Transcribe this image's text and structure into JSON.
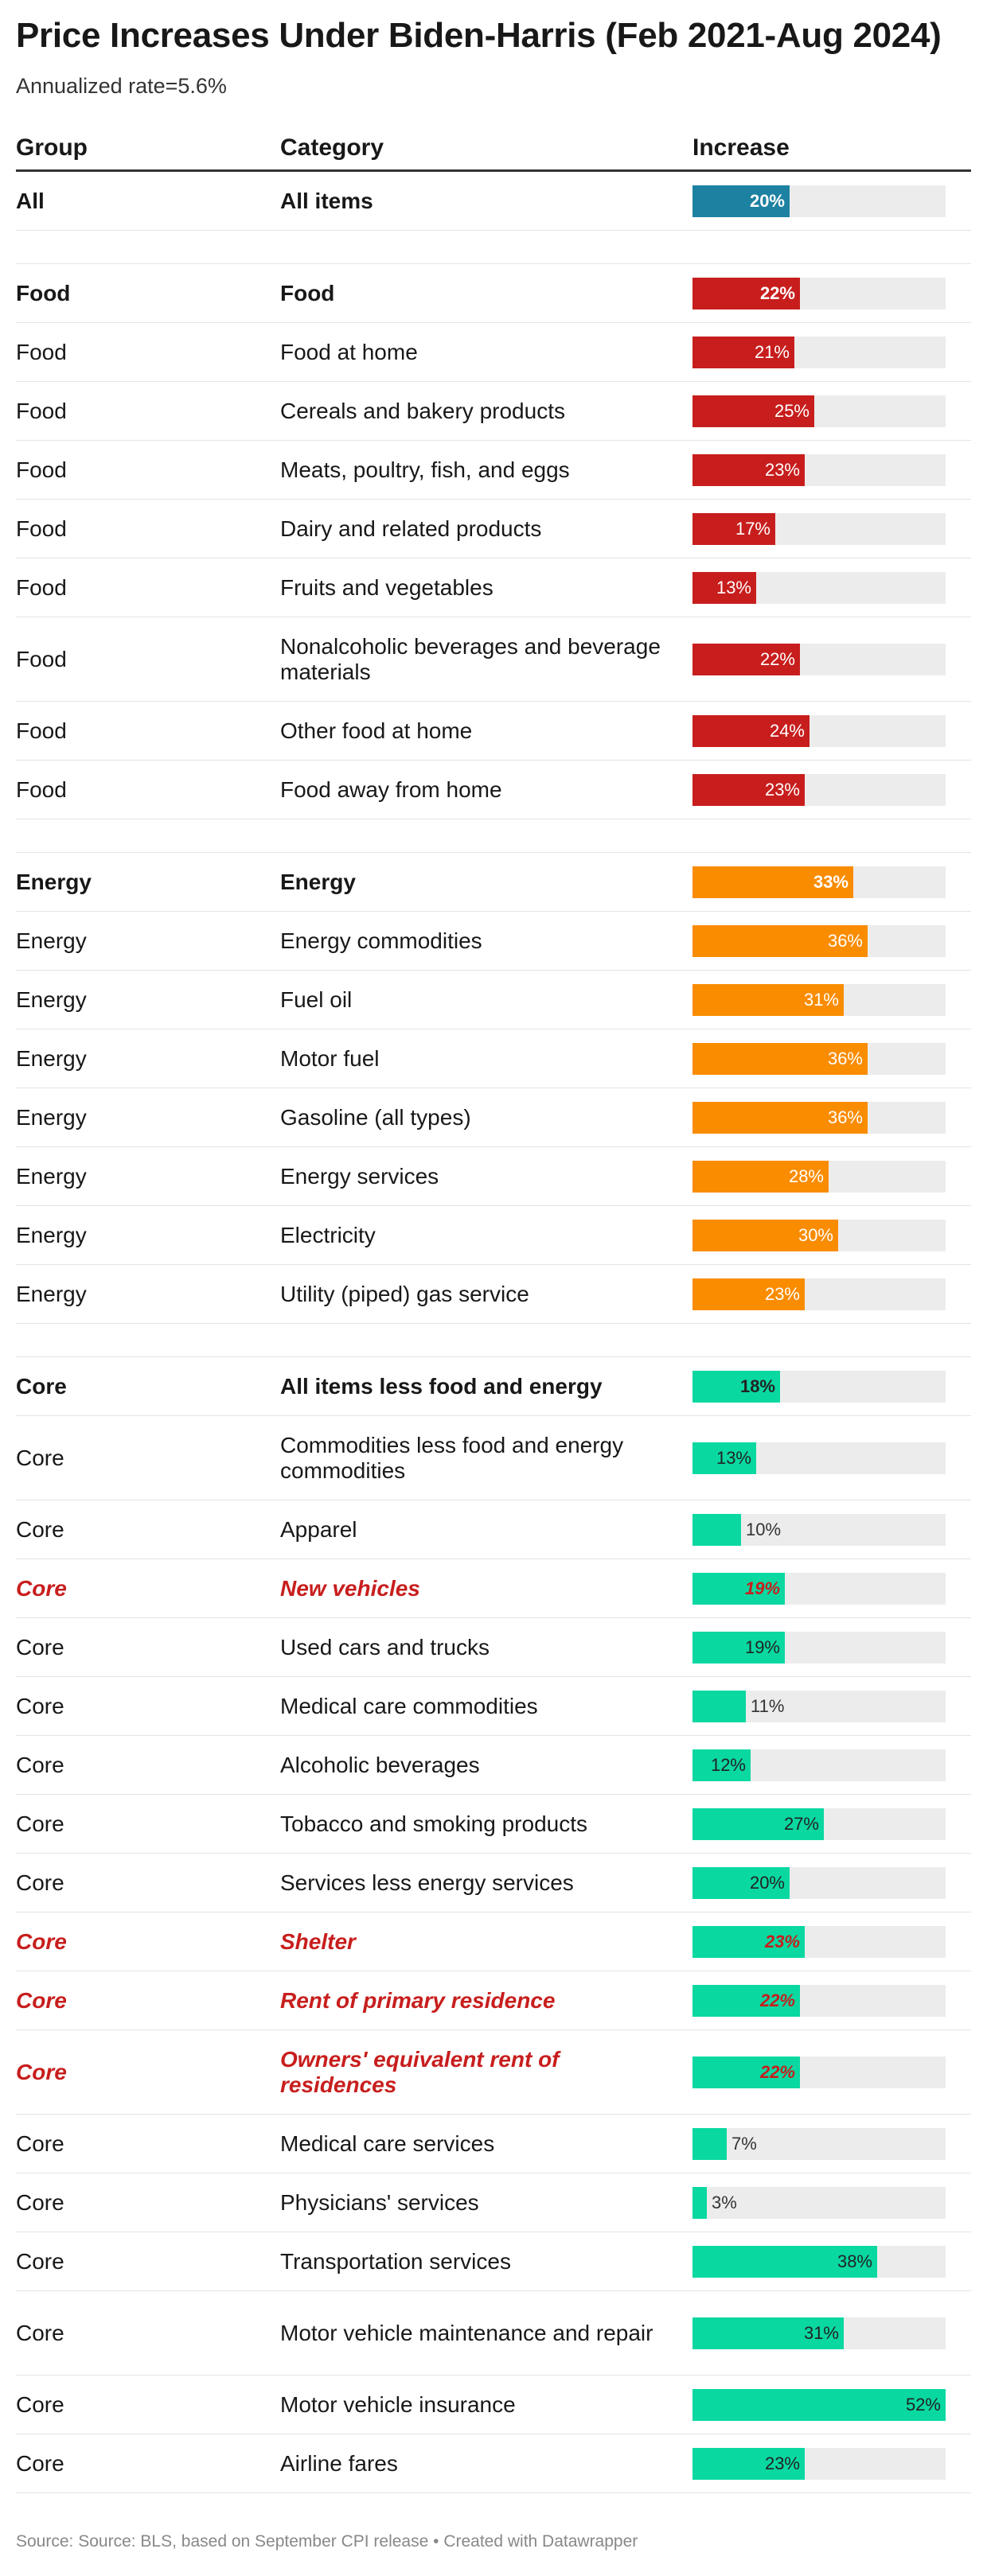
{
  "title": "Price Increases Under Biden-Harris (Feb 2021-Aug 2024)",
  "subtitle": "Annualized rate=5.6%",
  "headers": {
    "group": "Group",
    "category": "Category",
    "increase": "Increase"
  },
  "footer": "Source: Source: BLS, based on September CPI release • Created with Datawrapper",
  "colors": {
    "all": "#1d81a2",
    "food": "#c71e1d",
    "energy": "#fa8c00",
    "core": "#09d8a1",
    "track": "#ececec",
    "highlight": "#c71e1d"
  },
  "chart_data": {
    "type": "table",
    "xlim": [
      0,
      52
    ],
    "value_unit": "%",
    "rows": [
      {
        "group": "All",
        "category": "All items",
        "value": 20,
        "series": "all",
        "bold": true
      },
      {
        "spacer": true
      },
      {
        "group": "Food",
        "category": "Food",
        "value": 22,
        "series": "food",
        "bold": true
      },
      {
        "group": "Food",
        "category": "Food at home",
        "value": 21,
        "series": "food"
      },
      {
        "group": "Food",
        "category": "Cereals and bakery products",
        "value": 25,
        "series": "food"
      },
      {
        "group": "Food",
        "category": "Meats, poultry, fish, and eggs",
        "value": 23,
        "series": "food"
      },
      {
        "group": "Food",
        "category": "Dairy and related products",
        "value": 17,
        "series": "food"
      },
      {
        "group": "Food",
        "category": "Fruits and vegetables",
        "value": 13,
        "series": "food"
      },
      {
        "group": "Food",
        "category": "Nonalcoholic beverages and beverage materials",
        "value": 22,
        "series": "food",
        "tall": true
      },
      {
        "group": "Food",
        "category": "Other food at home",
        "value": 24,
        "series": "food"
      },
      {
        "group": "Food",
        "category": "Food away from home",
        "value": 23,
        "series": "food"
      },
      {
        "spacer": true
      },
      {
        "group": "Energy",
        "category": "Energy",
        "value": 33,
        "series": "energy",
        "bold": true
      },
      {
        "group": "Energy",
        "category": "Energy commodities",
        "value": 36,
        "series": "energy"
      },
      {
        "group": "Energy",
        "category": "Fuel oil",
        "value": 31,
        "series": "energy"
      },
      {
        "group": "Energy",
        "category": "Motor fuel",
        "value": 36,
        "series": "energy"
      },
      {
        "group": "Energy",
        "category": "Gasoline (all types)",
        "value": 36,
        "series": "energy"
      },
      {
        "group": "Energy",
        "category": "Energy services",
        "value": 28,
        "series": "energy"
      },
      {
        "group": "Energy",
        "category": "Electricity",
        "value": 30,
        "series": "energy"
      },
      {
        "group": "Energy",
        "category": "Utility (piped) gas service",
        "value": 23,
        "series": "energy"
      },
      {
        "spacer": true
      },
      {
        "group": "Core",
        "category": "All items less food and energy",
        "value": 18,
        "series": "core",
        "bold": true
      },
      {
        "group": "Core",
        "category": "Commodities less food and energy commodities",
        "value": 13,
        "series": "core",
        "tall": true
      },
      {
        "group": "Core",
        "category": "Apparel",
        "value": 10,
        "series": "core"
      },
      {
        "group": "Core",
        "category": "New vehicles",
        "value": 19,
        "series": "core",
        "highlight": true
      },
      {
        "group": "Core",
        "category": "Used cars and trucks",
        "value": 19,
        "series": "core"
      },
      {
        "group": "Core",
        "category": "Medical care commodities",
        "value": 11,
        "series": "core"
      },
      {
        "group": "Core",
        "category": "Alcoholic beverages",
        "value": 12,
        "series": "core"
      },
      {
        "group": "Core",
        "category": "Tobacco and smoking products",
        "value": 27,
        "series": "core"
      },
      {
        "group": "Core",
        "category": "Services less energy services",
        "value": 20,
        "series": "core"
      },
      {
        "group": "Core",
        "category": "Shelter",
        "value": 23,
        "series": "core",
        "highlight": true
      },
      {
        "group": "Core",
        "category": "Rent of primary residence",
        "value": 22,
        "series": "core",
        "highlight": true
      },
      {
        "group": "Core",
        "category": "Owners' equivalent rent of residences",
        "value": 22,
        "series": "core",
        "highlight": true,
        "tall": true
      },
      {
        "group": "Core",
        "category": "Medical care services",
        "value": 7,
        "series": "core"
      },
      {
        "group": "Core",
        "category": "Physicians' services",
        "value": 3,
        "series": "core"
      },
      {
        "group": "Core",
        "category": "Transportation services",
        "value": 38,
        "series": "core"
      },
      {
        "group": "Core",
        "category": "Motor vehicle maintenance and repair",
        "value": 31,
        "series": "core",
        "tall": true
      },
      {
        "group": "Core",
        "category": "Motor vehicle insurance",
        "value": 52,
        "series": "core"
      },
      {
        "group": "Core",
        "category": "Airline fares",
        "value": 23,
        "series": "core"
      }
    ]
  }
}
